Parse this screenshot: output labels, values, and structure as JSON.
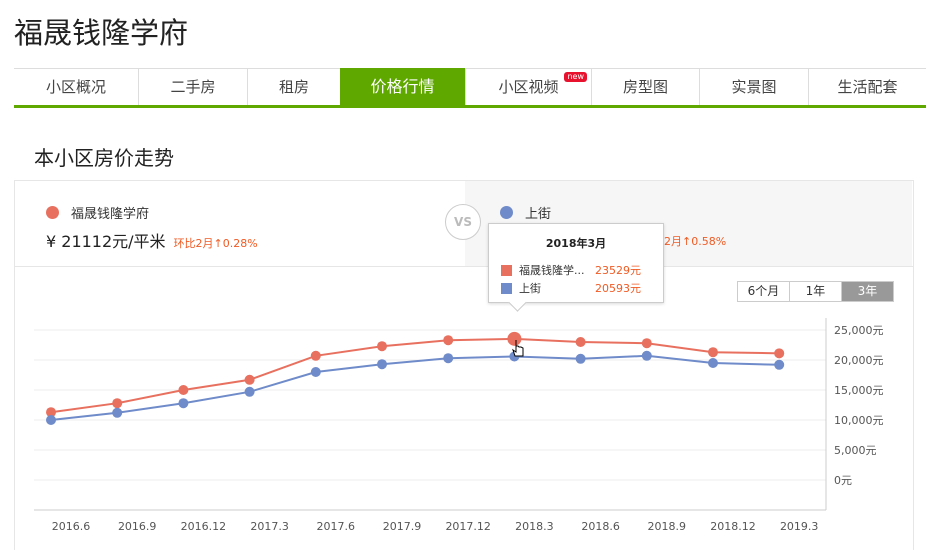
{
  "title": "福晟钱隆学府",
  "tabs": [
    {
      "label": "小区概况"
    },
    {
      "label": "二手房"
    },
    {
      "label": "租房"
    },
    {
      "label": "价格行情",
      "active": true
    },
    {
      "label": "小区视频",
      "badge": "new"
    },
    {
      "label": "房型图"
    },
    {
      "label": "实景图"
    },
    {
      "label": "生活配套"
    }
  ],
  "section_title": "本小区房价走势",
  "compare": {
    "left": {
      "name": "福晟钱隆学府",
      "price": "¥ 21112元/平米",
      "change": "环比2月↑0.28%",
      "color": "#e8705f"
    },
    "vs": "VS",
    "right": {
      "name": "上街",
      "change": "2月↑0.58%",
      "color": "#6f8bc9"
    }
  },
  "range_buttons": [
    {
      "label": "6个月"
    },
    {
      "label": "1年"
    },
    {
      "label": "3年",
      "active": true
    }
  ],
  "tooltip": {
    "title": "2018年3月",
    "rows": [
      {
        "name": "福晟钱隆学...",
        "value": "23529元",
        "color": "#e8705f"
      },
      {
        "name": "上街",
        "value": "20593元",
        "color": "#6f8bc9"
      }
    ]
  },
  "chart_data": {
    "type": "line",
    "x": [
      "2016.6",
      "2016.9",
      "2016.12",
      "2017.3",
      "2017.6",
      "2017.9",
      "2017.12",
      "2018.3",
      "2018.6",
      "2018.9",
      "2018.12",
      "2019.3"
    ],
    "x_tick_labels": [
      "2016.6",
      "2016.9",
      "2016.12",
      "2017.3",
      "2017.6",
      "2017.9",
      "2017.12",
      "2018.3",
      "2018.6",
      "2018.9",
      "2018.12",
      "2019.3"
    ],
    "y_tick_labels": [
      "25,000元",
      "20,000元",
      "15,000元",
      "10,000元",
      "5,000元",
      "0元"
    ],
    "y_ticks": [
      25000,
      20000,
      15000,
      10000,
      5000,
      0
    ],
    "ylim": [
      -5000,
      27000
    ],
    "grid": true,
    "y_axis_position": "right",
    "series": [
      {
        "name": "福晟钱隆学府",
        "color": "#e8705f",
        "values": [
          11300,
          12800,
          15000,
          16700,
          20700,
          22300,
          23300,
          23529,
          23000,
          22800,
          21300,
          21112
        ]
      },
      {
        "name": "上街",
        "color": "#6f8bc9",
        "values": [
          10000,
          11200,
          12800,
          14700,
          18000,
          19300,
          20300,
          20593,
          20200,
          20700,
          19500,
          19200
        ]
      }
    ]
  }
}
